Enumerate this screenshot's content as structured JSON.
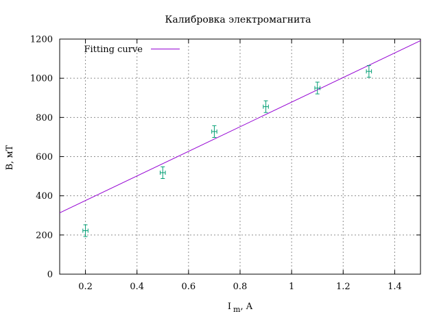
{
  "chart_data": {
    "type": "scatter",
    "title": "Калибровка электромагнита",
    "xlabel_main": "I",
    "xlabel_sub": "m",
    "xlabel_suffix": ", A",
    "ylabel": "B, мТ",
    "xlim": [
      0.1,
      1.5
    ],
    "ylim": [
      0,
      1200
    ],
    "xticks": [
      0.2,
      0.4,
      0.6,
      0.8,
      1,
      1.2,
      1.4
    ],
    "yticks": [
      0,
      200,
      400,
      600,
      800,
      1000,
      1200
    ],
    "grid": true,
    "legend_position": "top-left",
    "series": [
      {
        "kind": "points-with-errorbars",
        "color": "#009e73",
        "x": [
          0.2,
          0.5,
          0.7,
          0.9,
          1.1,
          1.3
        ],
        "y": [
          222,
          518,
          728,
          855,
          950,
          1035
        ],
        "xerr": [
          0.01,
          0.01,
          0.01,
          0.01,
          0.01,
          0.01
        ],
        "yerr": [
          30,
          30,
          30,
          30,
          30,
          30
        ]
      },
      {
        "kind": "line",
        "name": "Fitting curve",
        "color": "#9400d3",
        "x": [
          0.1,
          1.5
        ],
        "y": [
          313,
          1192
        ]
      }
    ]
  }
}
